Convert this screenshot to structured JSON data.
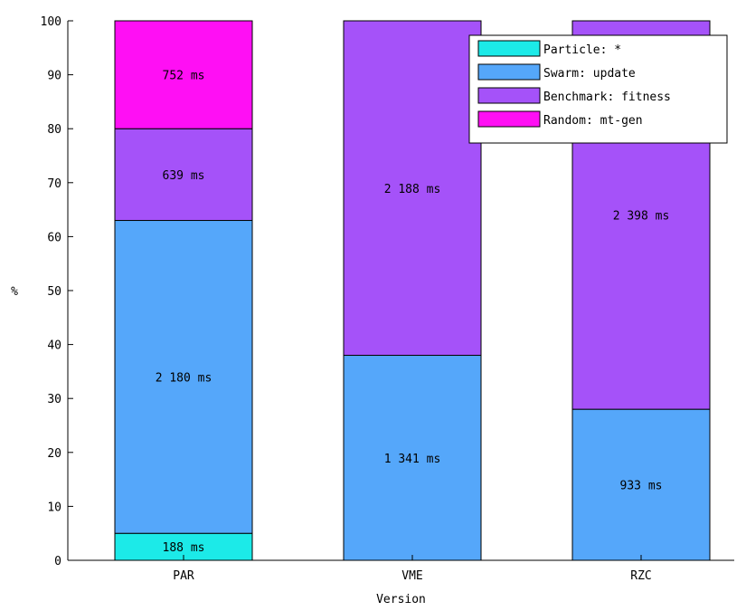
{
  "chart_data": {
    "type": "bar",
    "stacked": true,
    "xlabel": "Version",
    "ylabel": "%",
    "ylim": [
      0,
      100
    ],
    "yticks": [
      0,
      10,
      20,
      30,
      40,
      50,
      60,
      70,
      80,
      90,
      100
    ],
    "categories": [
      "PAR",
      "VME",
      "RZC"
    ],
    "series": [
      {
        "name": "Particle: *",
        "color": "#1ceae8",
        "values": [
          5,
          0,
          0
        ],
        "labels": [
          "188 ms",
          "",
          ""
        ]
      },
      {
        "name": "Swarm: update",
        "color": "#55a7fa",
        "values": [
          58,
          38,
          28
        ],
        "labels": [
          "2 180 ms",
          "1 341 ms",
          "933 ms"
        ]
      },
      {
        "name": "Benchmark: fitness",
        "color": "#a552f9",
        "values": [
          17,
          62,
          72
        ],
        "labels": [
          "639 ms",
          "2 188 ms",
          "2 398 ms"
        ]
      },
      {
        "name": "Random: mt-gen",
        "color": "#ff0ff4",
        "values": [
          20,
          0,
          0
        ],
        "labels": [
          "752 ms",
          "",
          ""
        ]
      }
    ],
    "legend_position": "top-right",
    "grid": false
  }
}
